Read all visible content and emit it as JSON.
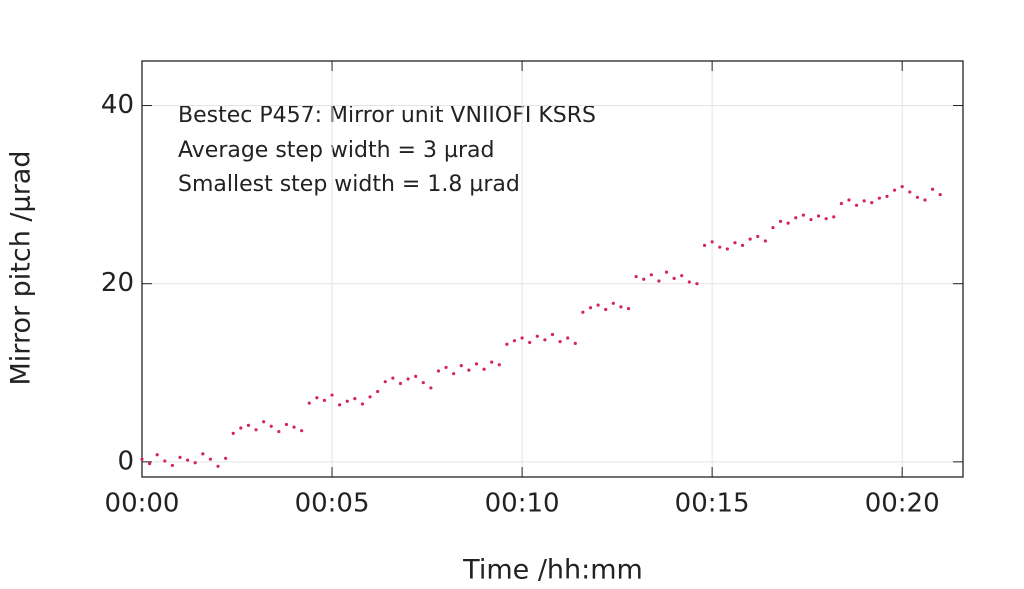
{
  "chart_data": {
    "type": "scatter",
    "annotations": [
      "Bestec  P457: Mirror unit VNIIOFI KSRS",
      "Average step width = 3 µrad",
      "Smallest step width = 1.8 µrad"
    ],
    "x_label": "Time /hh:mm",
    "y_label": "Mirror pitch /µrad",
    "x": [
      0,
      0.2,
      0.4,
      0.6,
      0.8,
      1,
      1.2,
      1.4,
      1.6,
      1.8,
      2,
      2.2,
      2.4,
      2.6,
      2.8,
      3,
      3.2,
      3.4,
      3.6,
      3.8,
      4,
      4.2,
      4.4,
      4.6,
      4.8,
      5,
      5.2,
      5.4,
      5.6,
      5.8,
      6,
      6.2,
      6.4,
      6.6,
      6.8,
      7,
      7.2,
      7.4,
      7.6,
      7.8,
      8,
      8.2,
      8.4,
      8.6,
      8.8,
      9,
      9.2,
      9.4,
      9.6,
      9.8,
      10,
      10.2,
      10.4,
      10.6,
      10.8,
      11,
      11.2,
      11.4,
      11.6,
      11.8,
      12,
      12.2,
      12.4,
      12.6,
      12.8,
      13,
      13.2,
      13.4,
      13.6,
      13.8,
      14,
      14.2,
      14.4,
      14.6,
      14.8,
      15,
      15.2,
      15.4,
      15.6,
      15.8,
      16,
      16.2,
      16.4,
      16.6,
      16.8,
      17,
      17.2,
      17.4,
      17.6,
      17.8,
      18,
      18.2,
      18.4,
      18.6,
      18.8,
      19,
      19.2,
      19.4,
      19.6,
      19.8,
      20,
      20.2,
      20.4,
      20.6,
      20.8,
      21
    ],
    "series": [
      {
        "color": "#d6245a",
        "values": [
          0.3,
          -0.2,
          0.8,
          0.1,
          -0.4,
          0.5,
          0.2,
          -0.1,
          0.9,
          0.3,
          -0.5,
          0.4,
          3.2,
          3.8,
          4.1,
          3.6,
          4.5,
          4.0,
          3.4,
          4.2,
          3.9,
          3.5,
          6.6,
          7.2,
          6.9,
          7.5,
          6.4,
          6.8,
          7.1,
          6.5,
          7.3,
          7.9,
          9.0,
          9.4,
          8.8,
          9.3,
          9.6,
          8.9,
          8.3,
          10.2,
          10.6,
          9.9,
          10.8,
          10.3,
          11.0,
          10.4,
          11.2,
          10.9,
          13.2,
          13.6,
          13.9,
          13.4,
          14.1,
          13.7,
          14.3,
          13.5,
          13.9,
          13.3,
          16.8,
          17.3,
          17.6,
          17.1,
          17.8,
          17.4,
          17.2,
          20.8,
          20.5,
          21.0,
          20.3,
          21.3,
          20.6,
          20.9,
          20.2,
          20.0,
          24.3,
          24.7,
          24.1,
          23.9,
          24.6,
          24.3,
          25.0,
          25.3,
          24.8,
          26.3,
          27.0,
          26.8,
          27.4,
          27.7,
          27.2,
          27.6,
          27.3,
          27.5,
          29.0,
          29.4,
          28.8,
          29.3,
          29.1,
          29.6,
          29.8,
          30.5,
          30.9,
          30.3,
          29.7,
          29.4,
          30.6,
          30.0
        ]
      }
    ],
    "xlim": [
      0,
      21.6
    ],
    "ylim": [
      -1.7,
      45
    ],
    "xticks": [
      {
        "value": 0,
        "label": "00:00"
      },
      {
        "value": 5,
        "label": "00:05"
      },
      {
        "value": 10,
        "label": "00:10"
      },
      {
        "value": 15,
        "label": "00:15"
      },
      {
        "value": 20,
        "label": "00:20"
      }
    ],
    "yticks": [
      0,
      20,
      40
    ],
    "grid": true
  }
}
